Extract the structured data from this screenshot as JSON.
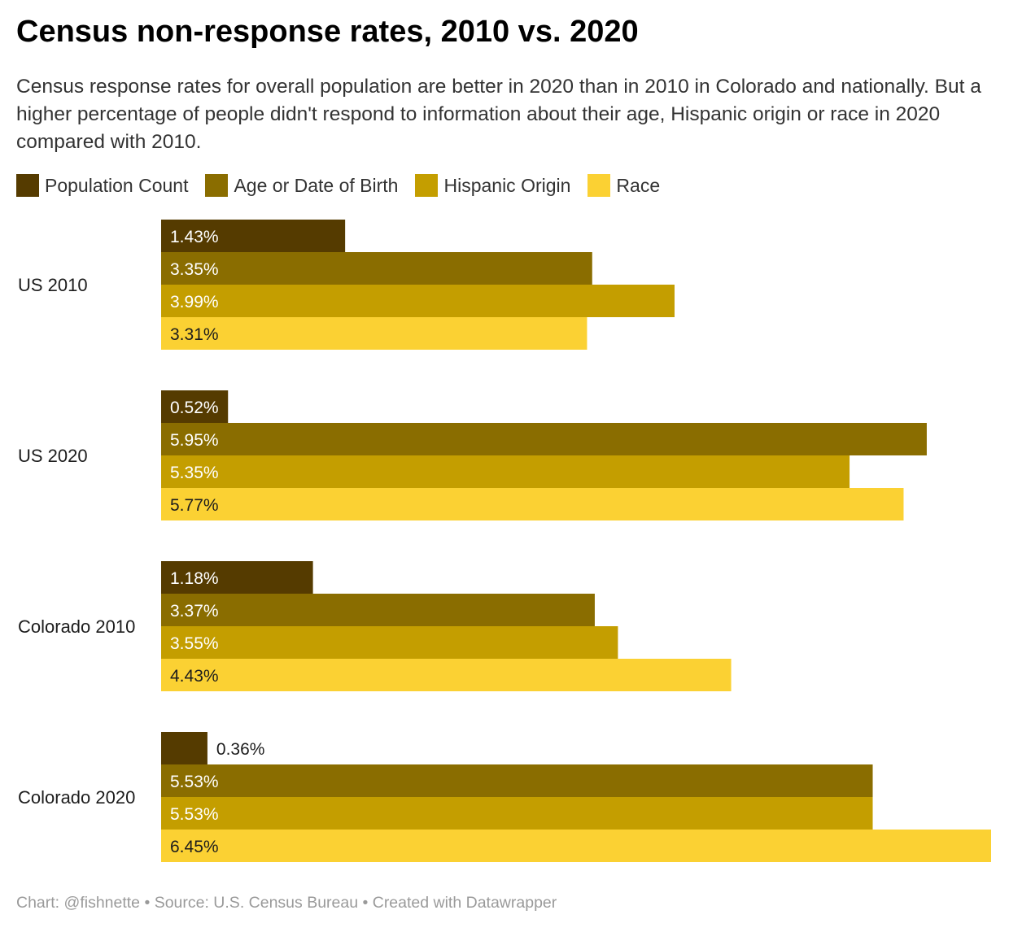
{
  "title": "Census non-response rates, 2010 vs. 2020",
  "subtitle": "Census response rates for overall population are better in 2020 than in 2010 in Colorado and nationally. But a higher percentage of people didn't respond to information about their age, Hispanic origin or race in 2020 compared with 2010.",
  "footer": "Chart: @fishnette • Source: U.S. Census Bureau • Created with Datawrapper",
  "chart_data": {
    "type": "bar",
    "orientation": "horizontal",
    "categories": [
      "US 2010",
      "US 2020",
      "Colorado 2010",
      "Colorado 2020"
    ],
    "series": [
      {
        "name": "Population Count",
        "color": "#553b00",
        "values": [
          1.43,
          0.52,
          1.18,
          0.36
        ],
        "labels": [
          "1.43%",
          "0.52%",
          "1.18%",
          "0.36%"
        ]
      },
      {
        "name": "Age or Date of Birth",
        "color": "#8a6d00",
        "values": [
          3.35,
          5.95,
          3.37,
          5.53
        ],
        "labels": [
          "3.35%",
          "5.95%",
          "3.37%",
          "5.53%"
        ]
      },
      {
        "name": "Hispanic Origin",
        "color": "#c49e00",
        "values": [
          3.99,
          5.35,
          3.55,
          5.53
        ],
        "labels": [
          "3.99%",
          "5.35%",
          "3.55%",
          "5.53%"
        ]
      },
      {
        "name": "Race",
        "color": "#fbd133",
        "values": [
          3.31,
          5.77,
          4.43,
          6.45
        ],
        "labels": [
          "3.31%",
          "5.77%",
          "4.43%",
          "6.45%"
        ]
      }
    ],
    "xlim": [
      0,
      6.45
    ],
    "legend_position": "top-left",
    "grid": false
  }
}
